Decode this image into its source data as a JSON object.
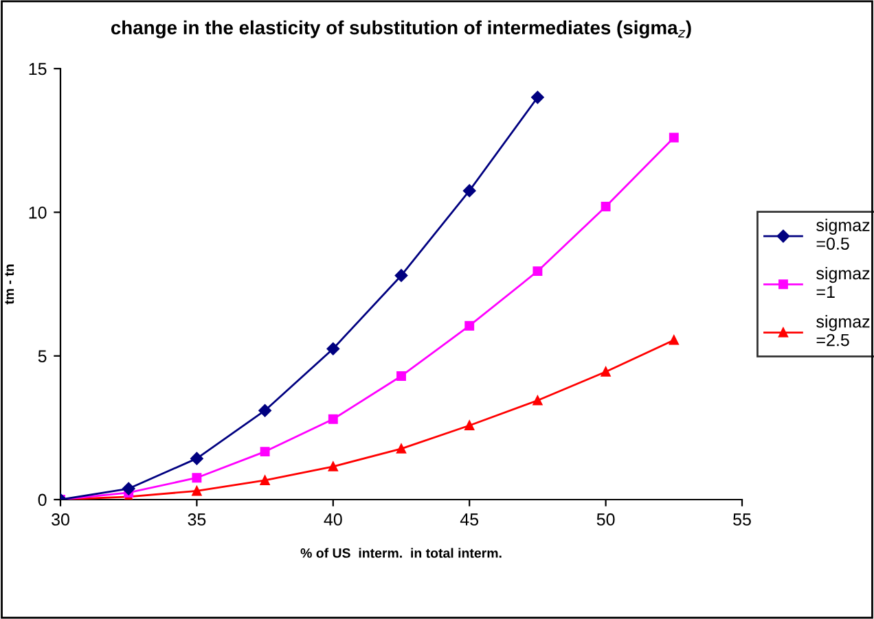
{
  "chart_data": {
    "type": "line",
    "title": "change in the elasticity of substitution of intermediates (sigma$_{z}$)",
    "xlabel": "% of US  interm.  in total interm.",
    "ylabel": "tm - tn",
    "x": [
      30,
      32.5,
      35,
      37.5,
      40,
      42.5,
      45,
      47.5,
      50,
      52.5
    ],
    "series": [
      {
        "name": "sigmaz =0.5",
        "color": "#000080",
        "marker": "diamond",
        "values": [
          0,
          0.38,
          1.43,
          3.1,
          5.25,
          7.8,
          10.75,
          14.0,
          null,
          null
        ]
      },
      {
        "name": "sigmaz =1",
        "color": "#ff00ff",
        "marker": "square",
        "values": [
          0,
          0.24,
          0.76,
          1.67,
          2.8,
          4.3,
          6.05,
          7.95,
          10.2,
          12.6
        ]
      },
      {
        "name": "sigmaz =2.5",
        "color": "#ff0000",
        "marker": "triangle",
        "values": [
          0,
          0.1,
          0.3,
          0.67,
          1.15,
          1.77,
          2.58,
          3.45,
          4.45,
          5.55
        ]
      }
    ],
    "xlim": [
      30,
      55
    ],
    "xticks": [
      30,
      35,
      40,
      45,
      50,
      55
    ],
    "ylim": [
      0,
      15
    ],
    "yticks": [
      0,
      5,
      10,
      15
    ],
    "grid": false,
    "legend": "right",
    "line_style": "solid"
  }
}
